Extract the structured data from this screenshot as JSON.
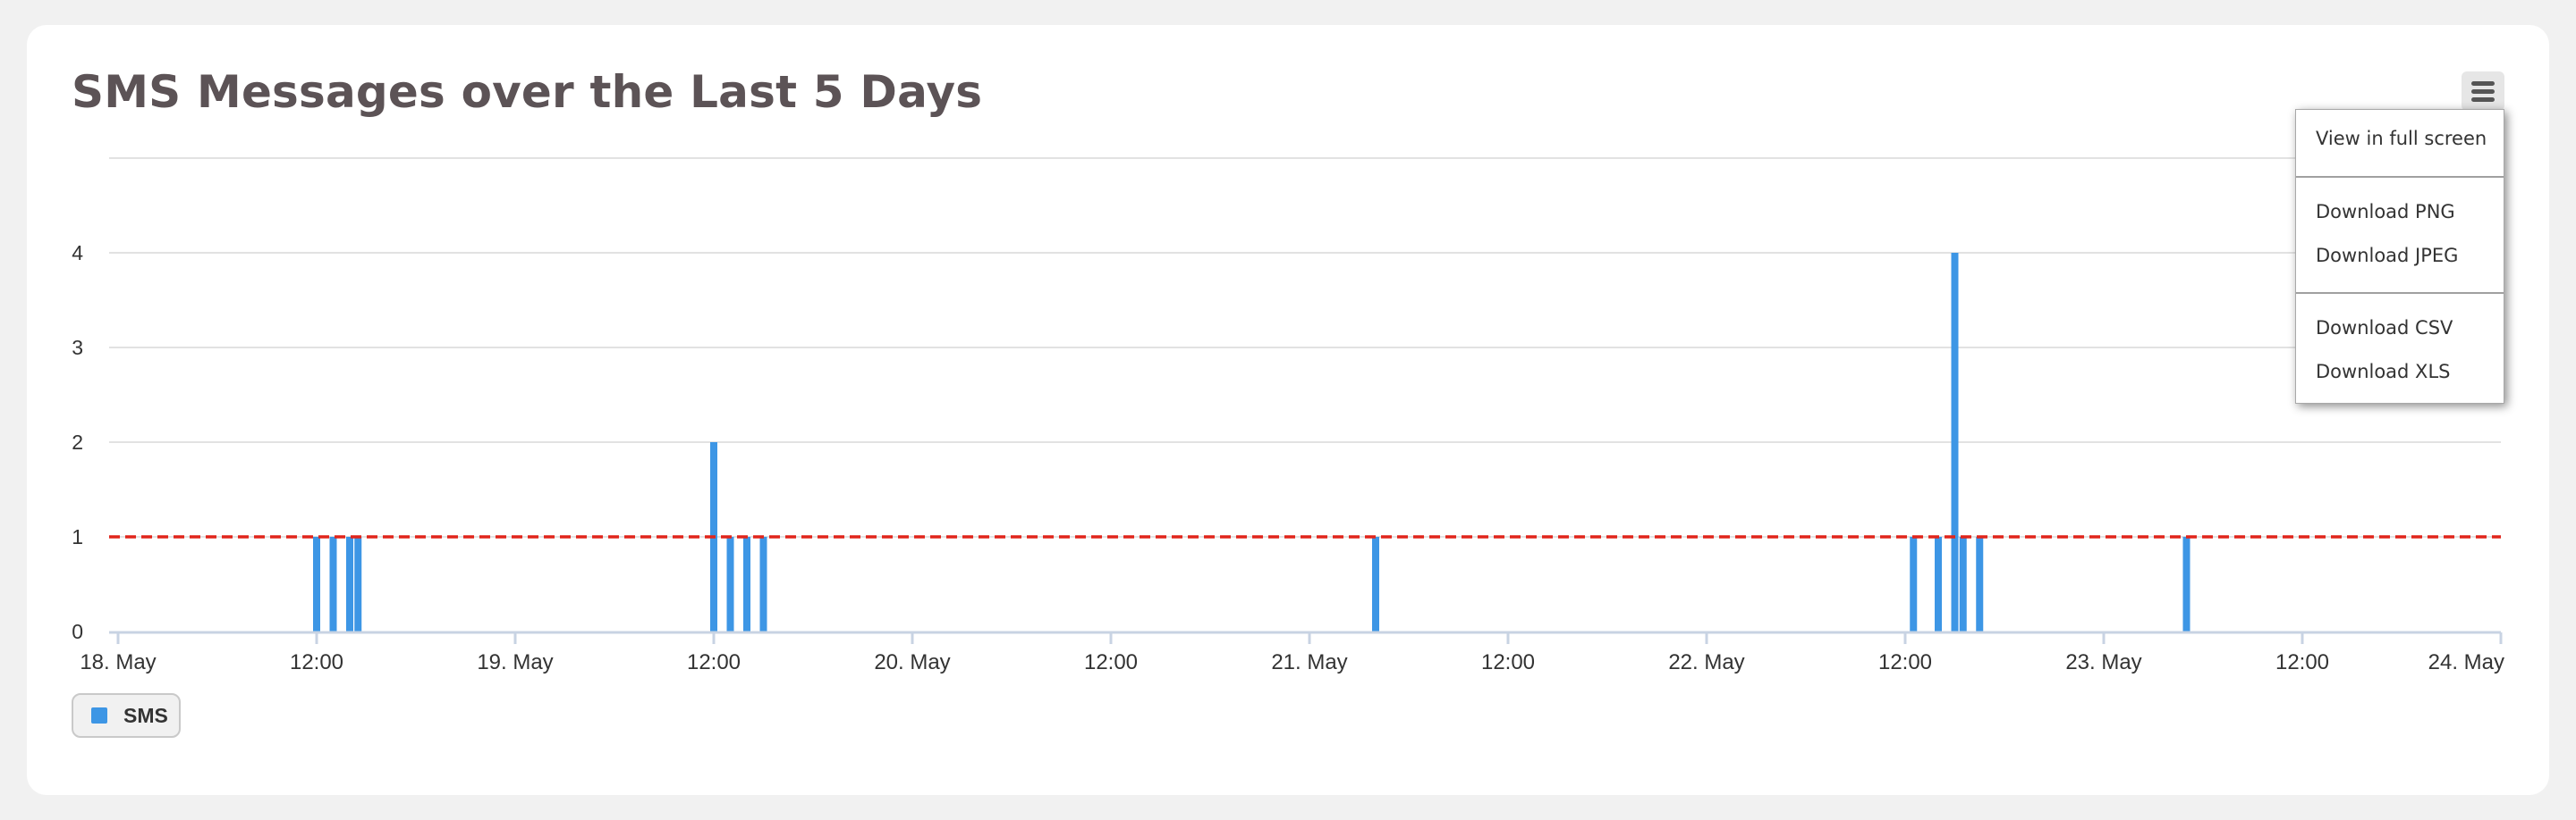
{
  "chart_data": {
    "type": "bar",
    "title": "SMS Messages over the Last 5 Days",
    "xlabel": "",
    "ylabel": "",
    "x_axis": {
      "type": "datetime",
      "range": [
        "2024-05-18T00:00",
        "2024-05-24T00:00"
      ],
      "tick_labels": [
        "18. May",
        "12:00",
        "19. May",
        "12:00",
        "20. May",
        "12:00",
        "21. May",
        "12:00",
        "22. May",
        "12:00",
        "23. May",
        "12:00",
        "24. May"
      ]
    },
    "y_axis": {
      "range": [
        0,
        5
      ],
      "tick_labels": [
        "0",
        "1",
        "2",
        "3",
        "4"
      ],
      "ticks": [
        0,
        1,
        2,
        3,
        4
      ]
    },
    "grid": true,
    "reference_line": {
      "value": 1,
      "color": "#e0251b",
      "style": "dashed"
    },
    "series": [
      {
        "name": "SMS",
        "color": "#3d96e5",
        "points": [
          {
            "x": "2024-05-18T12:00",
            "y": 1
          },
          {
            "x": "2024-05-18T13:00",
            "y": 1
          },
          {
            "x": "2024-05-18T14:00",
            "y": 1
          },
          {
            "x": "2024-05-18T14:30",
            "y": 1
          },
          {
            "x": "2024-05-19T12:00",
            "y": 2
          },
          {
            "x": "2024-05-19T13:00",
            "y": 1
          },
          {
            "x": "2024-05-19T14:00",
            "y": 1
          },
          {
            "x": "2024-05-19T15:00",
            "y": 1
          },
          {
            "x": "2024-05-21T04:00",
            "y": 1
          },
          {
            "x": "2024-05-22T12:30",
            "y": 1
          },
          {
            "x": "2024-05-22T14:00",
            "y": 1
          },
          {
            "x": "2024-05-22T15:00",
            "y": 4
          },
          {
            "x": "2024-05-22T15:30",
            "y": 1
          },
          {
            "x": "2024-05-22T16:30",
            "y": 1
          },
          {
            "x": "2024-05-23T05:00",
            "y": 1
          }
        ]
      }
    ],
    "legend": {
      "position": "bottom-left",
      "entries": [
        "SMS"
      ]
    }
  },
  "menu": {
    "items": [
      {
        "label": "View in full screen"
      },
      {
        "label": "Download PNG"
      },
      {
        "label": "Download JPEG"
      },
      {
        "label": "Download CSV"
      },
      {
        "label": "Download XLS"
      }
    ]
  },
  "icons": {
    "menu_button": "hamburger-menu-icon"
  }
}
